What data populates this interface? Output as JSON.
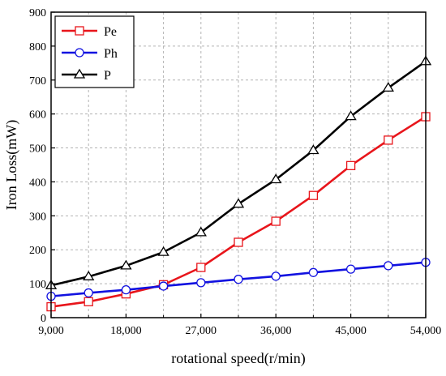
{
  "chart_data": {
    "type": "line",
    "title": "",
    "xlabel": "rotational speed(r/min)",
    "ylabel": "Iron Loss(mW)",
    "xlim": [
      9000,
      54000
    ],
    "ylim": [
      0,
      900
    ],
    "xticks": [
      9000,
      18000,
      27000,
      36000,
      45000,
      54000
    ],
    "xtick_labels": [
      "9,000",
      "18,000",
      "27,000",
      "36,000",
      "45,000",
      "54,000"
    ],
    "yticks": [
      0,
      100,
      200,
      300,
      400,
      500,
      600,
      700,
      800,
      900
    ],
    "ytick_labels": [
      "0",
      "100",
      "200",
      "300",
      "400",
      "500",
      "600",
      "700",
      "800",
      "900"
    ],
    "grid": true,
    "legend_position": "top-left",
    "x": [
      9000,
      13500,
      18000,
      22500,
      27000,
      31500,
      36000,
      40500,
      45000,
      49500,
      54000
    ],
    "series": [
      {
        "name": "Pe",
        "color": "#e8151b",
        "marker": "square",
        "values": [
          32,
          47,
          70,
          97,
          148,
          222,
          284,
          360,
          448,
          523,
          592
        ]
      },
      {
        "name": "Ph",
        "color": "#1212e0",
        "marker": "circle",
        "values": [
          63,
          73,
          82,
          93,
          103,
          113,
          122,
          133,
          143,
          153,
          163
        ]
      },
      {
        "name": "P",
        "color": "#000000",
        "marker": "triangle",
        "values": [
          95,
          121,
          153,
          193,
          251,
          335,
          407,
          493,
          593,
          677,
          755
        ]
      }
    ]
  }
}
